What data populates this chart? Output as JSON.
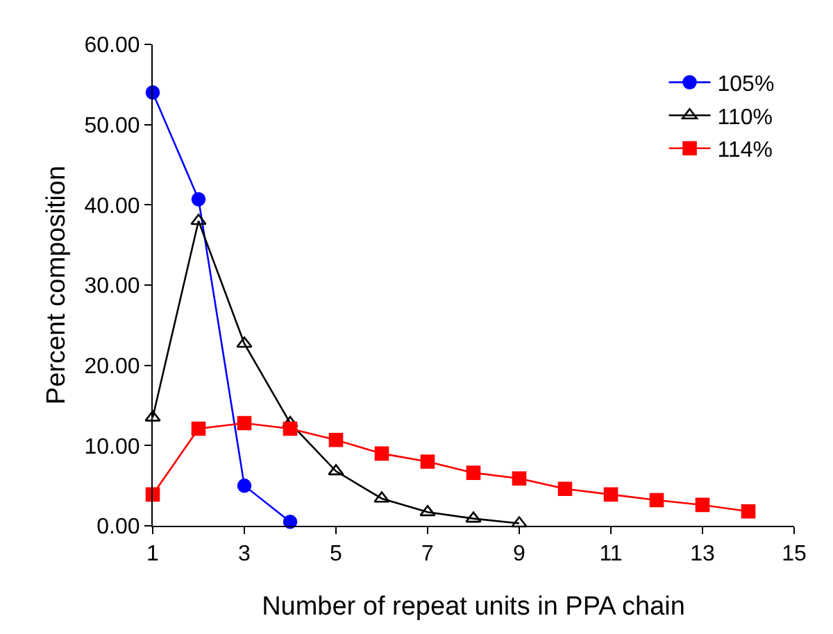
{
  "chart_data": {
    "type": "line",
    "xlabel": "Number of repeat units in PPA chain",
    "ylabel": "Percent composition",
    "xlim": [
      1,
      15
    ],
    "xticks": [
      1,
      3,
      5,
      7,
      9,
      11,
      13,
      15
    ],
    "ylim": [
      0,
      60
    ],
    "yticks": [
      {
        "value": 0,
        "label": "0.00"
      },
      {
        "value": 10,
        "label": "10.00"
      },
      {
        "value": 20,
        "label": "20.00"
      },
      {
        "value": 30,
        "label": "30.00"
      },
      {
        "value": 40,
        "label": "40.00"
      },
      {
        "value": 50,
        "label": "50.00"
      },
      {
        "value": 60,
        "label": "60.00"
      }
    ],
    "legend": "top right",
    "line_style": "solid",
    "series": [
      {
        "name": "105%",
        "color": "#0000ff",
        "marker": "circle",
        "x": [
          1,
          2,
          3,
          4
        ],
        "values": [
          54.0,
          40.7,
          5.0,
          0.5
        ]
      },
      {
        "name": "110%",
        "color": "#000000",
        "marker": "triangle",
        "x": [
          1,
          2,
          3,
          4,
          5,
          6,
          7,
          8,
          9
        ],
        "values": [
          13.5,
          38.0,
          22.7,
          12.8,
          6.8,
          3.4,
          1.7,
          0.9,
          0.3
        ]
      },
      {
        "name": "114%",
        "color": "#ff0000",
        "marker": "square",
        "x": [
          1,
          2,
          3,
          4,
          5,
          6,
          7,
          8,
          9,
          10,
          11,
          12,
          13,
          14
        ],
        "values": [
          3.9,
          12.1,
          12.8,
          12.1,
          10.7,
          9.0,
          8.0,
          6.6,
          5.9,
          4.6,
          3.9,
          3.2,
          2.6,
          1.8
        ]
      }
    ]
  }
}
